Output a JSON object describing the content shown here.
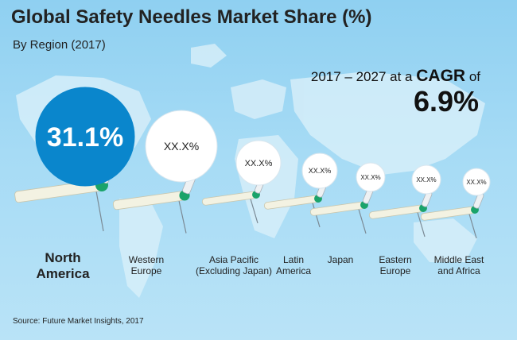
{
  "title": "Global Safety Needles Market Share (%)",
  "subtitle": "By Region (2017)",
  "cagr": {
    "period": "2017 – 2027",
    "prefix": "at a",
    "label": "CAGR",
    "suffix": "of",
    "value": "6.9%"
  },
  "source": "Source: Future Market Insights, 2017",
  "colors": {
    "background": "#a6dbf5",
    "highlight_bubble": "#0a86cc",
    "bubble": "#ffffff",
    "needle_hub": "#1aa36a",
    "map": "#d6eef9"
  },
  "chart_data": {
    "type": "bubble",
    "title": "Global Safety Needles Market Share (%)",
    "subtitle": "By Region (2017)",
    "categories": [
      "North America",
      "Western Europe",
      "Asia Pacific (Excluding Japan)",
      "Latin America",
      "Japan",
      "Eastern Europe",
      "Middle East and Africa"
    ],
    "labels": [
      "North\nAmerica",
      "Western\nEurope",
      "Asia Pacific\n(Excluding Japan)",
      "Latin\nAmerica",
      "Japan",
      "Eastern\nEurope",
      "Middle East\nand Africa"
    ],
    "value_labels": [
      "31.1%",
      "XX.X%",
      "XX.X%",
      "XX.X%",
      "XX.X%",
      "XX.X%",
      "XX.X%"
    ],
    "values": [
      31.1,
      null,
      null,
      null,
      null,
      null,
      null
    ],
    "highlighted": "North America",
    "size_rank": [
      1,
      2,
      3,
      4,
      5,
      6,
      7
    ]
  }
}
